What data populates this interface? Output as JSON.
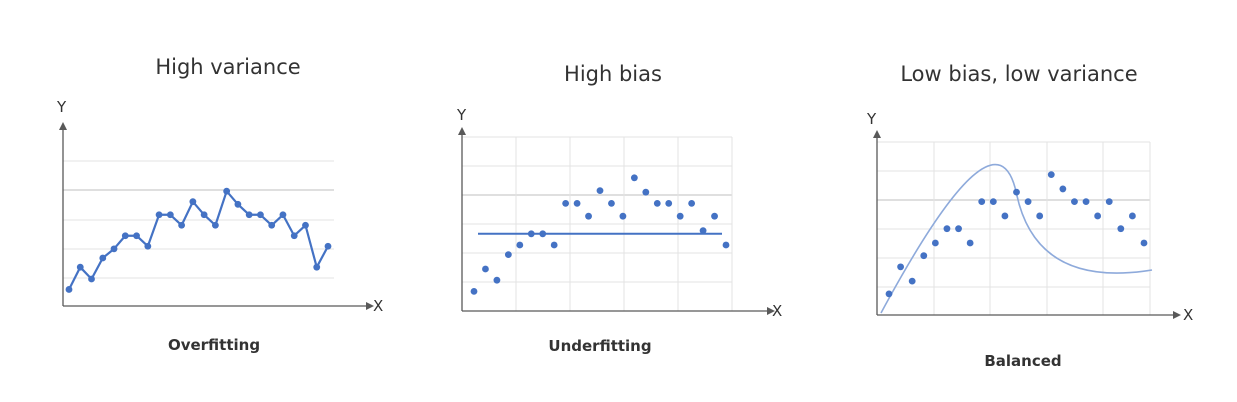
{
  "panels": [
    {
      "id": "overfit",
      "title": "High variance",
      "caption": "Overfitting",
      "x_label": "X",
      "y_label": "Y",
      "mode": "connected",
      "points_y": [
        0.05,
        0.22,
        0.13,
        0.29,
        0.36,
        0.46,
        0.46,
        0.38,
        0.62,
        0.62,
        0.54,
        0.72,
        0.62,
        0.54,
        0.8,
        0.7,
        0.62,
        0.62,
        0.54,
        0.62,
        0.46,
        0.54,
        0.22,
        0.38
      ]
    },
    {
      "id": "underfit",
      "title": "High bias",
      "caption": "Underfitting",
      "x_label": "X",
      "y_label": "Y",
      "mode": "scatter-line",
      "fit_y": 0.42,
      "points_y": [
        0.06,
        0.2,
        0.13,
        0.29,
        0.35,
        0.42,
        0.42,
        0.35,
        0.61,
        0.61,
        0.53,
        0.69,
        0.61,
        0.53,
        0.77,
        0.68,
        0.61,
        0.61,
        0.53,
        0.61,
        0.44,
        0.53,
        0.35
      ]
    },
    {
      "id": "balanced",
      "title": "Low bias, low variance",
      "caption": "Balanced",
      "x_label": "X",
      "y_label": "Y",
      "mode": "scatter-curve",
      "points_y": [
        0.07,
        0.24,
        0.15,
        0.31,
        0.39,
        0.48,
        0.48,
        0.39,
        0.65,
        0.65,
        0.56,
        0.71,
        0.65,
        0.56,
        0.82,
        0.73,
        0.65,
        0.65,
        0.56,
        0.65,
        0.48,
        0.56,
        0.39
      ]
    }
  ],
  "colors": {
    "series": "#4472c4",
    "curve": "#8eaadb",
    "axis": "#595959",
    "grid": "#e3e3e3",
    "grid_mid": "#bfbfbf"
  }
}
